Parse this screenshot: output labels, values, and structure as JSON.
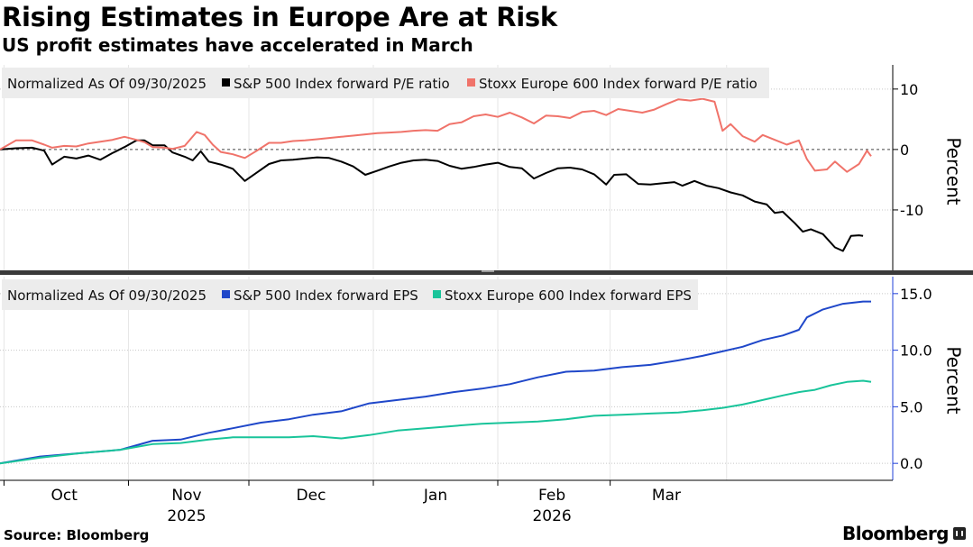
{
  "header": {
    "title": "Rising Estimates in Europe Are at Risk",
    "subtitle": "US profit estimates have accelerated in March"
  },
  "footer": {
    "source": "Source: Bloomberg",
    "brand": "Bloomberg"
  },
  "x_axis": {
    "months": [
      "Oct",
      "Nov",
      "Dec",
      "Jan",
      "Feb",
      "Mar"
    ],
    "years": [
      {
        "label": "2025",
        "under": "Nov"
      },
      {
        "label": "2026",
        "under": "Feb"
      }
    ]
  },
  "colors": {
    "sp_pe": "#000000",
    "stoxx_pe": "#f0736a",
    "sp_eps": "#1f47c9",
    "stoxx_eps": "#19c49a",
    "axis_blue": "#2140d9",
    "legend_bg": "#ececec",
    "grid": "#c8c8c8"
  },
  "chart_data": [
    {
      "type": "line",
      "legend_prefix": "Normalized As Of 09/30/2025",
      "title": "",
      "xlabel": "",
      "ylabel": "Percent",
      "yticks": [
        "10",
        "0",
        "-10"
      ],
      "ylim": [
        -20,
        14
      ],
      "x_unit": "days since 09/30/2025",
      "series": [
        {
          "name": "S&P 500 Index forward P/E ratio",
          "color": "#000000",
          "points": [
            [
              0,
              0
            ],
            [
              4,
              0.2
            ],
            [
              8,
              0.3
            ],
            [
              11,
              -0.2
            ],
            [
              13,
              -2.5
            ],
            [
              16,
              -1.2
            ],
            [
              19,
              -1.5
            ],
            [
              22,
              -1
            ],
            [
              25,
              -1.7
            ],
            [
              28,
              -0.6
            ],
            [
              31,
              0.4
            ],
            [
              34,
              1.5
            ],
            [
              36,
              1.5
            ],
            [
              38,
              0.7
            ],
            [
              41,
              0.7
            ],
            [
              43,
              -0.5
            ],
            [
              46,
              -1.2
            ],
            [
              48,
              -1.8
            ],
            [
              50,
              -0.3
            ],
            [
              52,
              -2
            ],
            [
              55,
              -2.5
            ],
            [
              58,
              -3.2
            ],
            [
              61,
              -5.2
            ],
            [
              64,
              -3.8
            ],
            [
              67,
              -2.4
            ],
            [
              70,
              -1.8
            ],
            [
              73,
              -1.7
            ],
            [
              76,
              -1.5
            ],
            [
              79,
              -1.3
            ],
            [
              82,
              -1.4
            ],
            [
              85,
              -2
            ],
            [
              88,
              -2.8
            ],
            [
              91,
              -4.2
            ],
            [
              94,
              -3.5
            ],
            [
              97,
              -2.8
            ],
            [
              100,
              -2.2
            ],
            [
              103,
              -1.8
            ],
            [
              106,
              -1.7
            ],
            [
              109,
              -1.9
            ],
            [
              112,
              -2.7
            ],
            [
              115,
              -3.2
            ],
            [
              118,
              -2.9
            ],
            [
              121,
              -2.5
            ],
            [
              124,
              -2.2
            ],
            [
              127,
              -2.9
            ],
            [
              130,
              -3.1
            ],
            [
              133,
              -4.8
            ],
            [
              136,
              -3.9
            ],
            [
              139,
              -3.1
            ],
            [
              142,
              -3
            ],
            [
              145,
              -3.3
            ],
            [
              148,
              -4.1
            ],
            [
              151,
              -5.8
            ],
            [
              153,
              -4.2
            ],
            [
              156,
              -4.1
            ],
            [
              159,
              -5.7
            ],
            [
              162,
              -5.8
            ],
            [
              165,
              -5.6
            ],
            [
              168,
              -5.4
            ],
            [
              170,
              -6
            ],
            [
              173,
              -5.2
            ],
            [
              176,
              -6
            ],
            [
              179,
              -6.4
            ],
            [
              182,
              -7.1
            ],
            [
              185,
              -7.6
            ],
            [
              188,
              -8.6
            ],
            [
              191,
              -9.1
            ],
            [
              193,
              -10.5
            ],
            [
              195,
              -10.3
            ],
            [
              198,
              -12.2
            ],
            [
              200,
              -13.6
            ],
            [
              202,
              -13.2
            ],
            [
              205,
              -14
            ],
            [
              208,
              -16.2
            ],
            [
              210,
              -16.8
            ],
            [
              212,
              -14.3
            ],
            [
              214,
              -14.2
            ],
            [
              215,
              -14.3
            ]
          ]
        },
        {
          "name": "Stoxx Europe 600 Index forward P/E ratio",
          "color": "#f0736a",
          "points": [
            [
              0,
              0
            ],
            [
              4,
              1.5
            ],
            [
              8,
              1.5
            ],
            [
              11,
              0.8
            ],
            [
              13,
              0.3
            ],
            [
              16,
              0.6
            ],
            [
              19,
              0.5
            ],
            [
              22,
              1
            ],
            [
              25,
              1.3
            ],
            [
              28,
              1.6
            ],
            [
              31,
              2.1
            ],
            [
              34,
              1.6
            ],
            [
              36,
              1.2
            ],
            [
              38,
              0.4
            ],
            [
              41,
              0.3
            ],
            [
              43,
              0.1
            ],
            [
              46,
              0.6
            ],
            [
              49,
              2.9
            ],
            [
              51,
              2.4
            ],
            [
              53,
              0.8
            ],
            [
              55,
              -0.4
            ],
            [
              58,
              -0.8
            ],
            [
              61,
              -1.4
            ],
            [
              64,
              -0.2
            ],
            [
              67,
              1.1
            ],
            [
              70,
              1.1
            ],
            [
              73,
              1.4
            ],
            [
              76,
              1.5
            ],
            [
              79,
              1.7
            ],
            [
              82,
              1.9
            ],
            [
              85,
              2.1
            ],
            [
              88,
              2.3
            ],
            [
              91,
              2.5
            ],
            [
              94,
              2.7
            ],
            [
              97,
              2.8
            ],
            [
              100,
              2.9
            ],
            [
              103,
              3.1
            ],
            [
              106,
              3.2
            ],
            [
              109,
              3.1
            ],
            [
              112,
              4.2
            ],
            [
              115,
              4.5
            ],
            [
              118,
              5.5
            ],
            [
              121,
              5.8
            ],
            [
              124,
              5.4
            ],
            [
              127,
              6.1
            ],
            [
              130,
              5.3
            ],
            [
              133,
              4.3
            ],
            [
              136,
              5.6
            ],
            [
              139,
              5.5
            ],
            [
              142,
              5.2
            ],
            [
              145,
              6.2
            ],
            [
              148,
              6.4
            ],
            [
              151,
              5.7
            ],
            [
              154,
              6.7
            ],
            [
              157,
              6.4
            ],
            [
              160,
              6.1
            ],
            [
              163,
              6.6
            ],
            [
              166,
              7.5
            ],
            [
              169,
              8.3
            ],
            [
              172,
              8.1
            ],
            [
              175,
              8.4
            ],
            [
              178,
              7.9
            ],
            [
              180,
              3.1
            ],
            [
              182,
              4.2
            ],
            [
              185,
              2.2
            ],
            [
              188,
              1.3
            ],
            [
              190,
              2.4
            ],
            [
              193,
              1.6
            ],
            [
              196,
              0.8
            ],
            [
              199,
              1.5
            ],
            [
              201,
              -1.6
            ],
            [
              203,
              -3.5
            ],
            [
              206,
              -3.3
            ],
            [
              208,
              -2
            ],
            [
              211,
              -3.7
            ],
            [
              214,
              -2.4
            ],
            [
              216,
              -0.2
            ],
            [
              217,
              -1.1
            ]
          ]
        }
      ]
    },
    {
      "type": "line",
      "legend_prefix": "Normalized As Of 09/30/2025",
      "title": "",
      "xlabel": "",
      "ylabel": "Percent",
      "yticks": [
        "15.0",
        "10.0",
        "5.0",
        "0.0"
      ],
      "ylim": [
        -1.5,
        16.5
      ],
      "x_unit": "days since 09/30/2025",
      "series": [
        {
          "name": "S&P 500 Index forward EPS",
          "color": "#1f47c9",
          "points": [
            [
              0,
              0
            ],
            [
              10,
              0.6
            ],
            [
              20,
              0.9
            ],
            [
              30,
              1.2
            ],
            [
              38,
              2
            ],
            [
              45,
              2.1
            ],
            [
              52,
              2.7
            ],
            [
              58,
              3.1
            ],
            [
              65,
              3.6
            ],
            [
              72,
              3.9
            ],
            [
              78,
              4.3
            ],
            [
              85,
              4.6
            ],
            [
              92,
              5.3
            ],
            [
              99,
              5.6
            ],
            [
              106,
              5.9
            ],
            [
              113,
              6.3
            ],
            [
              120,
              6.6
            ],
            [
              127,
              7
            ],
            [
              134,
              7.6
            ],
            [
              141,
              8.1
            ],
            [
              148,
              8.2
            ],
            [
              155,
              8.5
            ],
            [
              162,
              8.7
            ],
            [
              169,
              9.1
            ],
            [
              175,
              9.5
            ],
            [
              180,
              9.9
            ],
            [
              185,
              10.3
            ],
            [
              190,
              10.9
            ],
            [
              195,
              11.3
            ],
            [
              199,
              11.8
            ],
            [
              201,
              12.9
            ],
            [
              205,
              13.6
            ],
            [
              210,
              14.1
            ],
            [
              215,
              14.3
            ],
            [
              217,
              14.3
            ]
          ]
        },
        {
          "name": "Stoxx Europe 600 Index forward EPS",
          "color": "#19c49a",
          "points": [
            [
              0,
              0
            ],
            [
              10,
              0.5
            ],
            [
              20,
              0.9
            ],
            [
              30,
              1.2
            ],
            [
              38,
              1.7
            ],
            [
              45,
              1.8
            ],
            [
              52,
              2.1
            ],
            [
              58,
              2.3
            ],
            [
              65,
              2.3
            ],
            [
              72,
              2.3
            ],
            [
              78,
              2.4
            ],
            [
              85,
              2.2
            ],
            [
              92,
              2.5
            ],
            [
              99,
              2.9
            ],
            [
              106,
              3.1
            ],
            [
              113,
              3.3
            ],
            [
              120,
              3.5
            ],
            [
              127,
              3.6
            ],
            [
              134,
              3.7
            ],
            [
              141,
              3.9
            ],
            [
              148,
              4.2
            ],
            [
              155,
              4.3
            ],
            [
              162,
              4.4
            ],
            [
              169,
              4.5
            ],
            [
              175,
              4.7
            ],
            [
              180,
              4.9
            ],
            [
              185,
              5.2
            ],
            [
              190,
              5.6
            ],
            [
              195,
              6.0
            ],
            [
              199,
              6.3
            ],
            [
              203,
              6.5
            ],
            [
              207,
              6.9
            ],
            [
              211,
              7.2
            ],
            [
              215,
              7.3
            ],
            [
              217,
              7.2
            ]
          ]
        }
      ]
    }
  ]
}
